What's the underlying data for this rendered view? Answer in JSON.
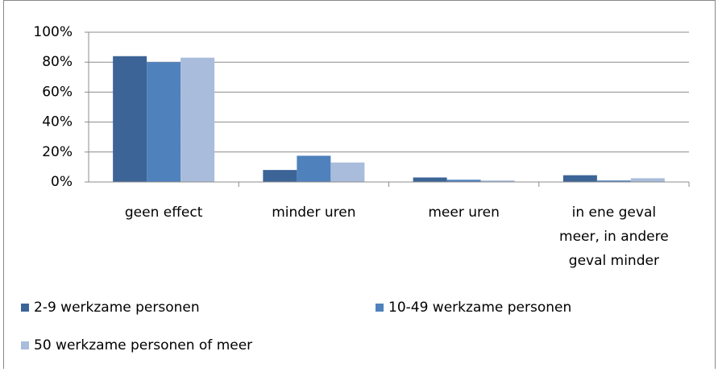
{
  "chart_data": {
    "type": "bar",
    "categories": [
      "geen effect",
      "minder uren",
      "meer uren",
      "in ene geval meer, in andere geval minder"
    ],
    "series": [
      {
        "name": "2-9 werkzame personen",
        "color": "#3c6496",
        "values": [
          84,
          8,
          3,
          4.5
        ]
      },
      {
        "name": "10-49 werkzame personen",
        "color": "#4f81bd",
        "values": [
          80,
          17.5,
          1.5,
          1
        ]
      },
      {
        "name": "50 werkzame personen of meer",
        "color": "#a9bcdc",
        "values": [
          83,
          13,
          1,
          2.5
        ]
      }
    ],
    "ylim": [
      0,
      100
    ],
    "yticks": [
      {
        "value": 0,
        "label": "0%"
      },
      {
        "value": 20,
        "label": "20%"
      },
      {
        "value": 40,
        "label": "40%"
      },
      {
        "value": 60,
        "label": "60%"
      },
      {
        "value": 80,
        "label": "80%"
      },
      {
        "value": 100,
        "label": "100%"
      }
    ],
    "grid": true
  }
}
